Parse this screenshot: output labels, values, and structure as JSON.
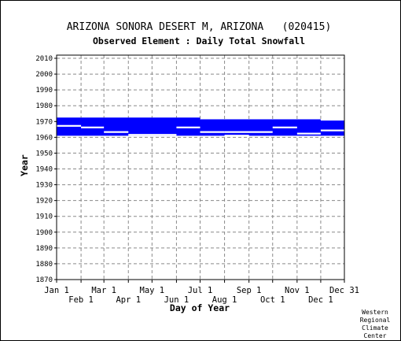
{
  "chart_data": {
    "type": "bar",
    "title": "ARIZONA SONORA DESERT M, ARIZONA   (020415)",
    "subtitle": "Observed Element : Daily Total Snowfall",
    "xlabel": "Day of Year",
    "ylabel": "Year",
    "ylim": [
      1870,
      2012
    ],
    "yticks": [
      1870,
      1880,
      1890,
      1900,
      1910,
      1920,
      1930,
      1940,
      1950,
      1960,
      1970,
      1980,
      1990,
      2000,
      2010
    ],
    "xlim": [
      1,
      366
    ],
    "xticks_upper": [
      {
        "label": "Jan 1",
        "day": 1
      },
      {
        "label": "Mar 1",
        "day": 61
      },
      {
        "label": "May 1",
        "day": 122
      },
      {
        "label": "Jul 1",
        "day": 183
      },
      {
        "label": "Sep 1",
        "day": 245
      },
      {
        "label": "Nov 1",
        "day": 306
      },
      {
        "label": "Dec 31",
        "day": 366
      }
    ],
    "xticks_lower": [
      {
        "label": "Feb 1",
        "day": 32
      },
      {
        "label": "Apr 1",
        "day": 92
      },
      {
        "label": "Jun 1",
        "day": 153
      },
      {
        "label": "Aug 1",
        "day": 214
      },
      {
        "label": "Oct 1",
        "day": 275
      },
      {
        "label": "Dec 1",
        "day": 336
      }
    ],
    "grid": true,
    "series_color": "#0000ff",
    "data_coverage": {
      "year_start": 1961,
      "year_end": 1972,
      "gaps": [
        {
          "year": 1967.3,
          "day_start": 1,
          "day_end": 32
        },
        {
          "year": 1966.3,
          "day_start": 32,
          "day_end": 61
        },
        {
          "year": 1963.4,
          "day_start": 61,
          "day_end": 92
        },
        {
          "year": 1961.6,
          "day_start": 92,
          "day_end": 153
        },
        {
          "year": 1966.3,
          "day_start": 153,
          "day_end": 183
        },
        {
          "year": 1963.4,
          "day_start": 183,
          "day_end": 214
        },
        {
          "year": 1961.1,
          "day_start": 214,
          "day_end": 245
        },
        {
          "year": 1963.4,
          "day_start": 214,
          "day_end": 275
        },
        {
          "year": 1966.3,
          "day_start": 275,
          "day_end": 306
        },
        {
          "year": 1962.4,
          "day_start": 306,
          "day_end": 336
        },
        {
          "year": 1964.4,
          "day_start": 336,
          "day_end": 366
        },
        {
          "year": 1971.2,
          "day_start": 336,
          "day_end": 366
        }
      ],
      "top_edge": [
        {
          "day_start": 1,
          "day_end": 183,
          "year": 1972.5
        },
        {
          "day_start": 183,
          "day_end": 366,
          "year": 1971.4
        }
      ]
    }
  },
  "credit": {
    "line1": "Western",
    "line2": "Regional",
    "line3": "Climate",
    "line4": "Center"
  }
}
